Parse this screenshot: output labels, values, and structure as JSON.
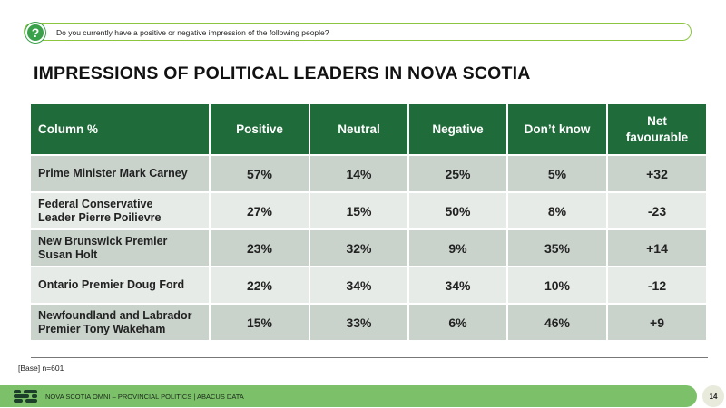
{
  "question": {
    "icon": "question-icon",
    "text": "Do you currently have a positive or negative impression of the following people?"
  },
  "title": "IMPRESSIONS OF POLITICAL LEADERS IN NOVA SCOTIA",
  "table": {
    "headers": [
      "Column %",
      "Positive",
      "Neutral",
      "Negative",
      "Don’t know",
      "Net favourable"
    ],
    "rows": [
      {
        "name": "Prime Minister Mark Carney",
        "positive": "57%",
        "neutral": "14%",
        "negative": "25%",
        "dont_know": "5%",
        "net": "+32"
      },
      {
        "name": "Federal Conservative Leader Pierre Poilievre",
        "positive": "27%",
        "neutral": "15%",
        "negative": "50%",
        "dont_know": "8%",
        "net": "-23"
      },
      {
        "name": "New Brunswick Premier Susan Holt",
        "positive": "23%",
        "neutral": "32%",
        "negative": "9%",
        "dont_know": "35%",
        "net": "+14"
      },
      {
        "name": "Ontario Premier Doug Ford",
        "positive": "22%",
        "neutral": "34%",
        "negative": "34%",
        "dont_know": "10%",
        "net": "-12"
      },
      {
        "name": "Newfoundland and Labrador Premier Tony Wakeham",
        "positive": "15%",
        "neutral": "33%",
        "negative": "6%",
        "dont_know": "46%",
        "net": "+9"
      }
    ]
  },
  "base_note": "[Base] n=601",
  "footer": {
    "logo": "abacus-logo-icon",
    "text": "NOVA SCOTIA OMNI – PROVINCIAL POLITICS | ABACUS DATA",
    "page": "14"
  },
  "colors": {
    "header_green": "#1f6b3a",
    "footer_green": "#7cc16a",
    "accent_green": "#8cc63f"
  }
}
